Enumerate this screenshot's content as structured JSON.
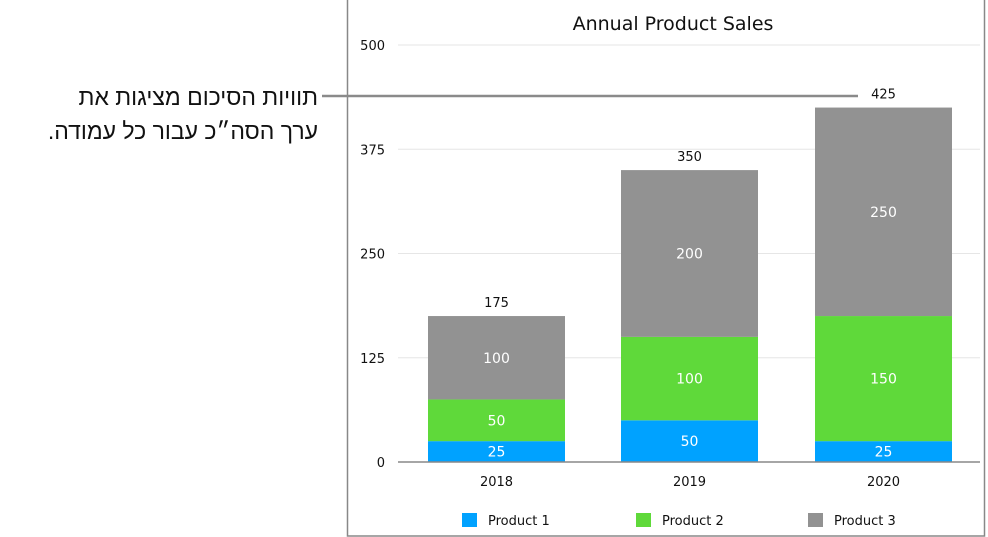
{
  "callout": {
    "line1": "תוויות הסיכום מציגות את",
    "line2": "ערך הסה״כ עבור כל עמודה."
  },
  "chart_data": {
    "type": "bar",
    "stacked": true,
    "title": "Annual Product Sales",
    "xlabel": "",
    "ylabel": "",
    "categories": [
      "2018",
      "2019",
      "2020"
    ],
    "ylim": [
      0,
      500
    ],
    "yticks": [
      0,
      125,
      250,
      375,
      500
    ],
    "grid": true,
    "legend": "bottom",
    "series": [
      {
        "name": "Product 1",
        "values": [
          25,
          50,
          25
        ],
        "color": "#00a2ff"
      },
      {
        "name": "Product 2",
        "values": [
          50,
          100,
          150
        ],
        "color": "#5fd93a"
      },
      {
        "name": "Product 3",
        "values": [
          100,
          200,
          250
        ],
        "color": "#929292"
      }
    ],
    "totals": [
      175,
      350,
      425
    ]
  }
}
